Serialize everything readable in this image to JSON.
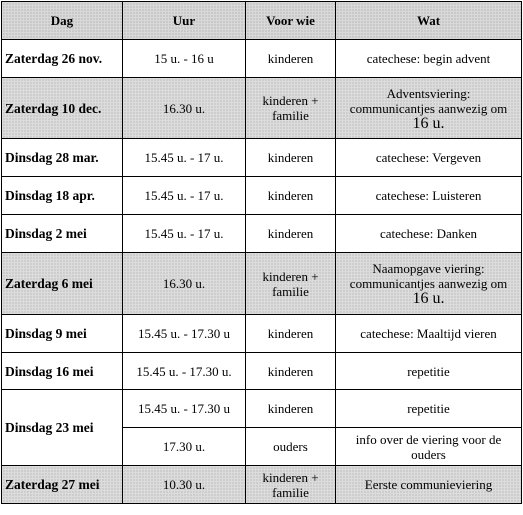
{
  "headers": [
    "Dag",
    "Uur",
    "Voor wie",
    "Wat"
  ],
  "rows": [
    {
      "dag": "Zaterdag 26 nov.",
      "uur": "15 u. - 16 u",
      "voor": "kinderen",
      "wat": "catechese: begin advent"
    },
    {
      "dag": "Zaterdag 10 dec.",
      "uur": "16.30 u.",
      "voor": "kinderen + familie",
      "wat_line1": "Adventsviering:",
      "wat_line2": "communicantjes aanwezig om",
      "wat_line3": "16 u."
    },
    {
      "dag": "Dinsdag 28 mar.",
      "uur": "15.45 u. - 17 u.",
      "voor": "kinderen",
      "wat": "catechese: Vergeven"
    },
    {
      "dag": "Dinsdag 18 apr.",
      "uur": "15.45 u. - 17 u.",
      "voor": "kinderen",
      "wat": "catechese: Luisteren"
    },
    {
      "dag": "Dinsdag 2 mei",
      "uur": "15.45 u. - 17 u.",
      "voor": "kinderen",
      "wat": "catechese: Danken"
    },
    {
      "dag": "Zaterdag 6 mei",
      "uur": "16.30 u.",
      "voor": "kinderen + familie",
      "wat_line1": "Naamopgave viering:",
      "wat_line2": "communicantjes aanwezig om",
      "wat_line3": "16 u."
    },
    {
      "dag": "Dinsdag 9 mei",
      "uur": "15.45 u. - 17.30 u",
      "voor": "kinderen",
      "wat": "catechese: Maaltijd vieren"
    },
    {
      "dag": "Dinsdag 16 mei",
      "uur": "15.45 u. - 17.30 u.",
      "voor": "kinderen",
      "wat": "repetitie"
    },
    {
      "dag": "Dinsdag 23 mei",
      "uur": "15.45 u. - 17.30 u",
      "voor": "kinderen",
      "wat": "repetitie"
    },
    {
      "uur": "17.30 u.",
      "voor": "ouders",
      "wat": "info over de viering voor de ouders"
    },
    {
      "dag": "Zaterdag 27 mei",
      "uur": "10.30 u.",
      "voor": "kinderen + familie",
      "wat": "Eerste communieviering"
    }
  ]
}
